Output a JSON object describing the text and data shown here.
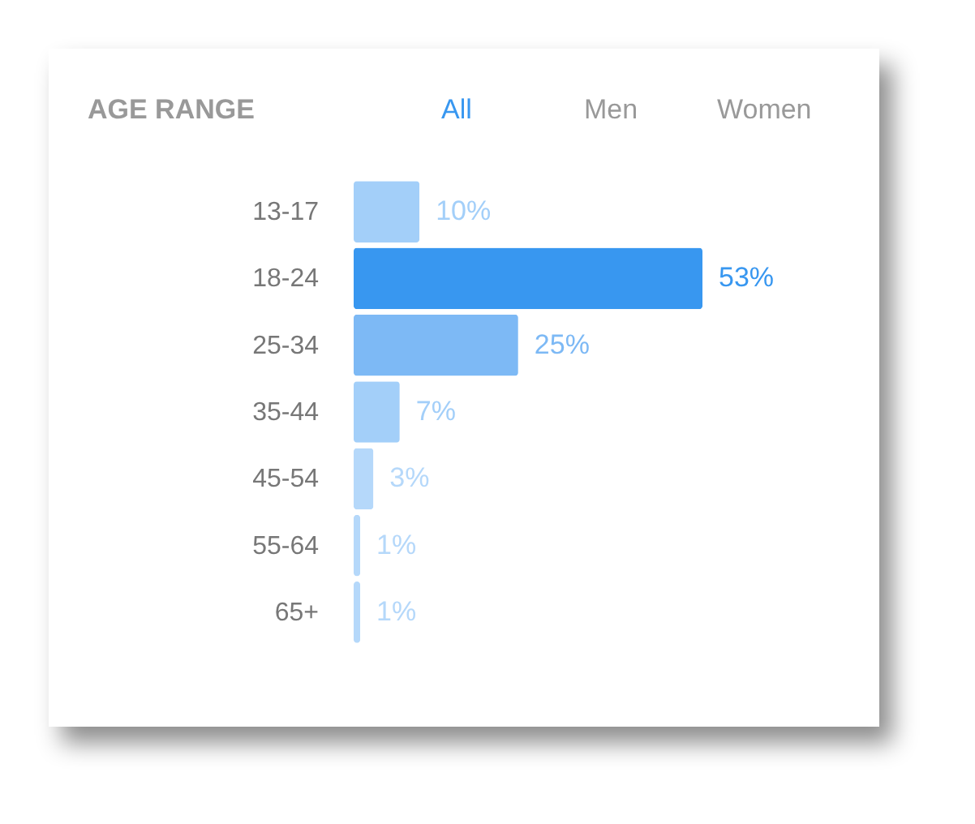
{
  "chart_data": {
    "type": "bar",
    "orientation": "horizontal",
    "title": "AGE RANGE",
    "annotations": [
      "All",
      "Men",
      "Women"
    ],
    "categories": [
      "13-17",
      "18-24",
      "25-34",
      "35-44",
      "45-54",
      "55-64",
      "65+"
    ],
    "values": [
      10,
      53,
      25,
      7,
      3,
      1,
      1
    ],
    "colors": [
      "#a3cff9",
      "#3897f0",
      "#7db9f5",
      "#a3cff9",
      "#b5d8fa",
      "#b5d8fa",
      "#b5d8fa"
    ],
    "value_labels": [
      "10%",
      "53%",
      "25%",
      "7%",
      "3%",
      "1%",
      "1%"
    ]
  }
}
